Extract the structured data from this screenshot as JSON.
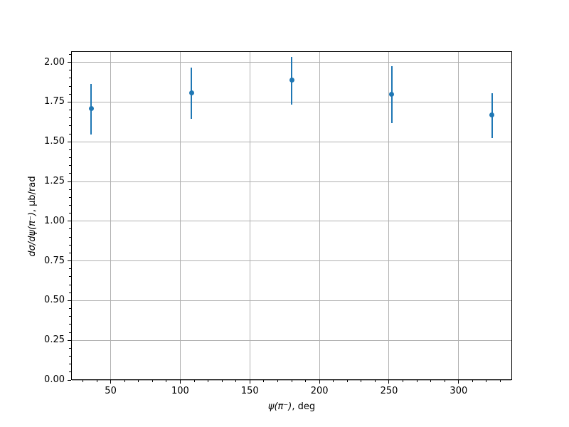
{
  "chart_data": {
    "type": "scatter",
    "subtype": "errorbar",
    "title": "",
    "xlabel_math": "ψ(π⁻)",
    "xlabel_suffix": ", deg",
    "ylabel_math": "dσ/dψ(π⁻)",
    "ylabel_suffix": ", μb/rad",
    "x": [
      36,
      108,
      180,
      252,
      324
    ],
    "y": [
      1.71,
      1.81,
      1.89,
      1.8,
      1.67
    ],
    "yerr": [
      0.16,
      0.16,
      0.15,
      0.18,
      0.14
    ],
    "xlim": [
      21.6,
      338.4
    ],
    "ylim": [
      0,
      2.07
    ],
    "x_major_ticks": [
      50,
      100,
      150,
      200,
      250,
      300
    ],
    "x_tick_labels": [
      "50",
      "100",
      "150",
      "200",
      "250",
      "300"
    ],
    "y_major_ticks": [
      0,
      0.25,
      0.5,
      0.75,
      1,
      1.25,
      1.5,
      1.75,
      2
    ],
    "y_tick_labels": [
      "0.00",
      "0.25",
      "0.50",
      "0.75",
      "1.00",
      "1.25",
      "1.50",
      "1.75",
      "2.00"
    ],
    "x_minor_step": 10,
    "y_minor_step": 0.05,
    "grid": true,
    "legend_visible": false,
    "marker_color": "#1f77b4",
    "grid_color": "#b0b0b0",
    "axis_color": "#000000",
    "background_color": "#ffffff"
  }
}
